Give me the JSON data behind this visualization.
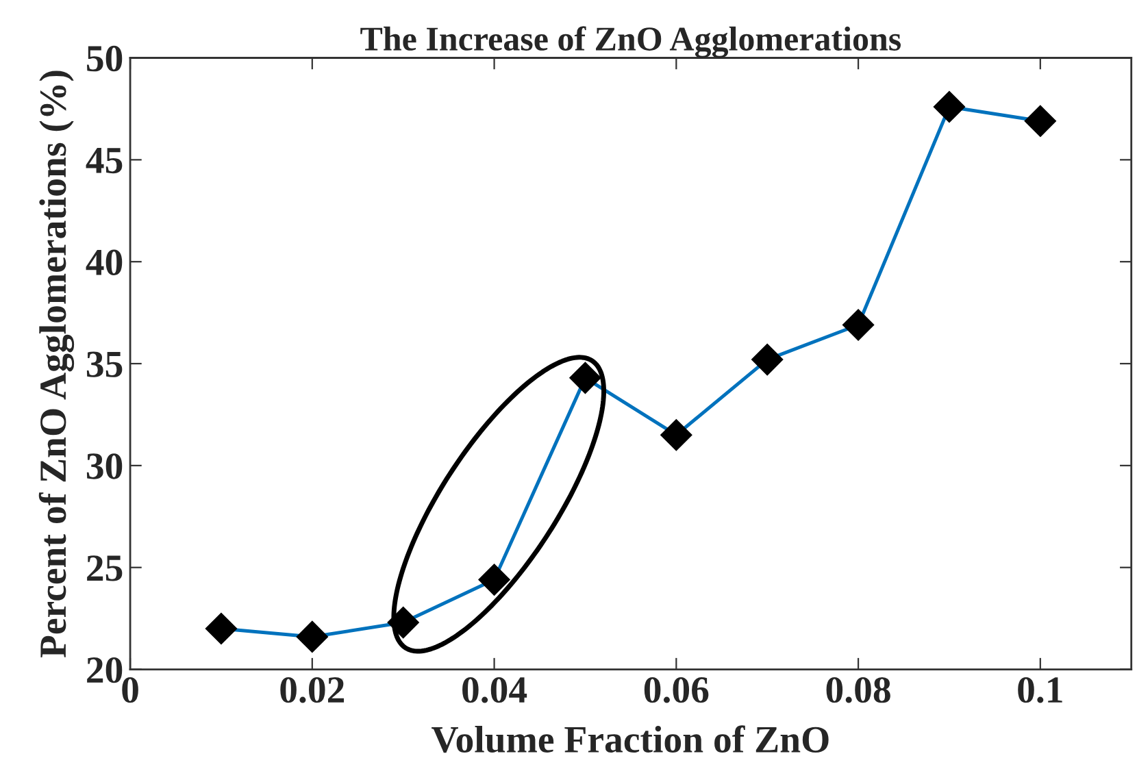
{
  "chart_data": {
    "type": "line",
    "title": "The Increase of ZnO Agglomerations",
    "xlabel": "Volume Fraction of ZnO",
    "ylabel": "Percent of ZnO Agglomerations (%)",
    "x": [
      0.01,
      0.02,
      0.03,
      0.04,
      0.05,
      0.06,
      0.07,
      0.08,
      0.09,
      0.1
    ],
    "series": [
      {
        "color": "#0072bd",
        "values": [
          22.0,
          21.6,
          22.3,
          24.4,
          34.3,
          31.5,
          35.2,
          36.9,
          47.6,
          46.9
        ]
      }
    ],
    "xlim": [
      0,
      0.11
    ],
    "xticks": [
      0,
      0.02,
      0.04,
      0.06,
      0.08,
      0.1
    ],
    "ylim": [
      20,
      50
    ],
    "yticks": [
      20,
      25,
      30,
      35,
      40,
      45,
      50
    ],
    "marker": "diamond",
    "line_style": "solid",
    "grid": false,
    "legend": false
  }
}
